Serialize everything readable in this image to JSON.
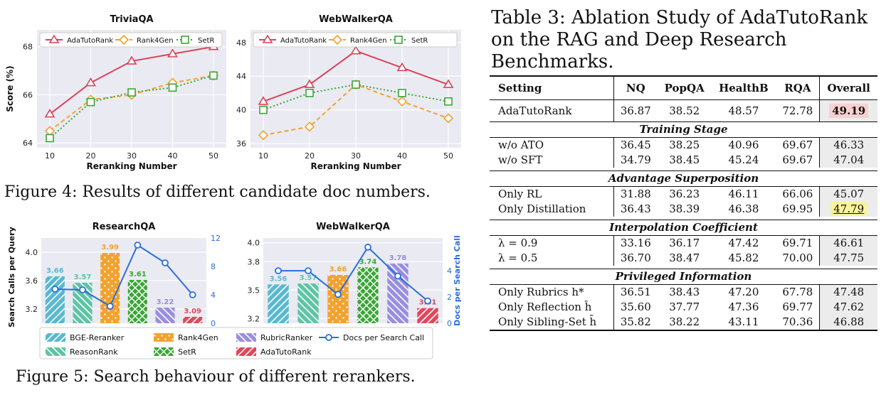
{
  "fig4": {
    "caption": "Figure 4: Results of different candidate doc numbers.",
    "legend": [
      "AdaTutoRank",
      "Rank4Gen",
      "SetR"
    ],
    "xlabel": "Reranking Number",
    "ylabel": "Score (%)"
  },
  "fig5": {
    "caption": "Figure 5: Search behaviour of different rerankers.",
    "ylabel_left": "Search Calls per Query",
    "ylabel_right": "Docs per Search Call",
    "legend": [
      "BGE-Reranker",
      "Rank4Gen",
      "RubricRanker",
      "Docs per Search Call",
      "ReasonRank",
      "SetR",
      "AdaTutoRank"
    ]
  },
  "chart_data": [
    {
      "type": "line",
      "title": "TriviaQA",
      "xlabel": "Reranking Number",
      "ylabel": "Score (%)",
      "x": [
        10,
        20,
        30,
        40,
        50
      ],
      "ylim": [
        63.8,
        68.7
      ],
      "yticks": [
        64,
        66,
        68
      ],
      "grid": true,
      "legend": "top",
      "series": [
        {
          "name": "AdaTutoRank",
          "color": "#d9435a",
          "values": [
            65.2,
            66.5,
            67.4,
            67.7,
            68.0
          ]
        },
        {
          "name": "Rank4Gen",
          "color": "#f2a22f",
          "values": [
            64.5,
            65.8,
            66.0,
            66.5,
            66.8
          ]
        },
        {
          "name": "SetR",
          "color": "#3aa637",
          "values": [
            64.2,
            65.7,
            66.1,
            66.3,
            66.8
          ]
        }
      ]
    },
    {
      "type": "line",
      "title": "WebWalkerQA",
      "xlabel": "Reranking Number",
      "ylabel": "",
      "x": [
        10,
        20,
        30,
        40,
        50
      ],
      "ylim": [
        35.5,
        49.5
      ],
      "yticks": [
        36,
        40,
        44,
        48
      ],
      "grid": true,
      "legend": "top",
      "series": [
        {
          "name": "AdaTutoRank",
          "color": "#d9435a",
          "values": [
            41.0,
            43.0,
            47.0,
            45.0,
            43.0
          ]
        },
        {
          "name": "Rank4Gen",
          "color": "#f2a22f",
          "values": [
            37.0,
            38.0,
            43.0,
            41.0,
            39.0
          ]
        },
        {
          "name": "SetR",
          "color": "#3aa637",
          "values": [
            40.0,
            42.0,
            43.0,
            42.0,
            41.0
          ]
        }
      ]
    },
    {
      "type": "bar",
      "title": "ResearchQA",
      "categories": [
        "BGE-Reranker",
        "ReasonRank",
        "Rank4Gen",
        "SetR",
        "RubricRanker",
        "AdaTutoRank"
      ],
      "values": [
        3.66,
        3.57,
        3.99,
        3.61,
        3.22,
        3.09
      ],
      "value_labels": [
        "3.66",
        "3.57",
        "3.99",
        "3.61",
        "3.22",
        "3.09"
      ],
      "ylim": [
        3.0,
        4.2
      ],
      "yticks": [
        3.2,
        3.6,
        4.0
      ],
      "y2lim": [
        0,
        12
      ],
      "y2ticks": [
        0,
        4,
        8,
        12
      ],
      "line": {
        "name": "Docs per Search Call",
        "values": [
          4.8,
          4.7,
          2.4,
          11.0,
          8.5,
          4.0
        ]
      },
      "colors": [
        "#59b9d0",
        "#5fc4a5",
        "#f2a22f",
        "#3aa637",
        "#9a8ee0",
        "#e0485c"
      ]
    },
    {
      "type": "bar",
      "title": "WebWalkerQA",
      "categories": [
        "BGE-Reranker",
        "ReasonRank",
        "Rank4Gen",
        "SetR",
        "RubricRanker",
        "AdaTutoRank"
      ],
      "values": [
        3.56,
        3.57,
        3.66,
        3.74,
        3.78,
        3.31
      ],
      "value_labels": [
        "3.56",
        "3.57",
        "3.66",
        "3.74",
        "3.78",
        "3.31"
      ],
      "ylim": [
        3.15,
        4.05
      ],
      "yticks": [
        3.2,
        3.5,
        3.8,
        4.0
      ],
      "y2lim": [
        0,
        6.5
      ],
      "y2ticks": [
        0,
        2,
        4
      ],
      "line": {
        "name": "Docs per Search Call",
        "values": [
          4.0,
          4.0,
          2.2,
          5.8,
          3.6,
          1.7
        ]
      },
      "colors": [
        "#59b9d0",
        "#5fc4a5",
        "#f2a22f",
        "#3aa637",
        "#9a8ee0",
        "#e0485c"
      ]
    }
  ],
  "table3": {
    "title": "Table 3: Ablation Study of AdaTutoRank on the RAG and Deep Research Benchmarks.",
    "headers": [
      "Setting",
      "NQ",
      "PopQA",
      "HealthB",
      "RQA",
      "Overall"
    ],
    "main": [
      "AdaTutoRank",
      "36.87",
      "38.52",
      "48.57",
      "72.78",
      "49.19"
    ],
    "groups": [
      {
        "name": "Training Stage",
        "rows": [
          [
            "w/o ATO",
            "36.45",
            "38.25",
            "40.96",
            "69.67",
            "46.33"
          ],
          [
            "w/o SFT",
            "34.79",
            "38.45",
            "45.24",
            "69.67",
            "47.04"
          ]
        ]
      },
      {
        "name": "Advantage Superposition",
        "rows": [
          [
            "Only RL",
            "31.88",
            "36.23",
            "46.11",
            "66.06",
            "45.07"
          ],
          [
            "Only Distillation",
            "36.43",
            "38.39",
            "46.38",
            "69.95",
            "47.79"
          ]
        ]
      },
      {
        "name": "Interpolation Coefficient",
        "rows": [
          [
            "λ = 0.9",
            "33.16",
            "36.17",
            "47.42",
            "69.71",
            "46.61"
          ],
          [
            "λ = 0.5",
            "36.70",
            "38.47",
            "45.82",
            "70.00",
            "47.75"
          ]
        ]
      },
      {
        "name": "Privileged Information",
        "rows": [
          [
            "Only Rubrics h*",
            "36.51",
            "38.43",
            "47.20",
            "67.78",
            "47.48"
          ],
          [
            "Only Reflection ĥ",
            "35.60",
            "37.77",
            "47.36",
            "69.77",
            "47.62"
          ],
          [
            "Only Sibling-Set h̄",
            "35.82",
            "38.22",
            "43.11",
            "70.36",
            "46.88"
          ]
        ]
      }
    ]
  }
}
